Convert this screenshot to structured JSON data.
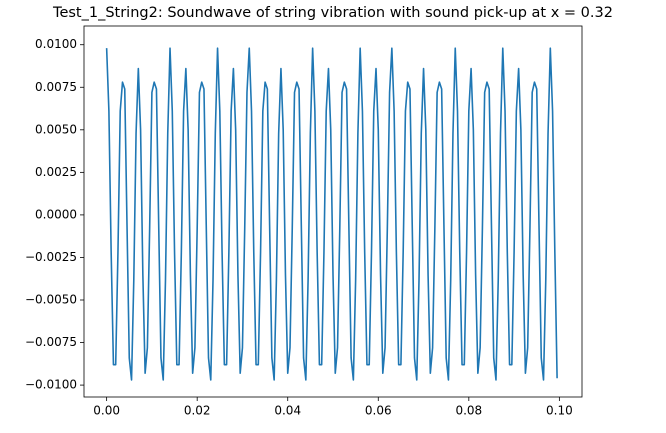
{
  "chart_data": {
    "type": "line",
    "title": "Test_1_String2: Soundwave of string vibration with sound pick-up at x = 0.32",
    "x": [
      0,
      0.0005,
      0.001,
      0.0015,
      0.002,
      0.0025,
      0.003,
      0.0035,
      0.004,
      0.0045,
      0.005,
      0.0055,
      0.006,
      0.0065,
      0.007,
      0.0075,
      0.008,
      0.0085,
      0.009,
      0.0095,
      0.01,
      0.0105,
      0.011,
      0.0115,
      0.012,
      0.0125,
      0.013,
      0.0135,
      0.014,
      0.0145,
      0.015,
      0.0155,
      0.016,
      0.0165,
      0.017,
      0.0175,
      0.018,
      0.0185,
      0.019,
      0.0195,
      0.02,
      0.0205,
      0.021,
      0.0215,
      0.022,
      0.0225,
      0.023,
      0.0235,
      0.024,
      0.0245,
      0.025,
      0.0255,
      0.026,
      0.0265,
      0.027,
      0.0275,
      0.028,
      0.0285,
      0.029,
      0.0295,
      0.03,
      0.0305,
      0.031,
      0.0315,
      0.032,
      0.0325,
      0.033,
      0.0335,
      0.034,
      0.0345,
      0.035,
      0.0355,
      0.036,
      0.0365,
      0.037,
      0.0375,
      0.038,
      0.0385,
      0.039,
      0.0395,
      0.04,
      0.0405,
      0.041,
      0.0415,
      0.042,
      0.0425,
      0.043,
      0.0435,
      0.044,
      0.0445,
      0.045,
      0.0455,
      0.046,
      0.0465,
      0.047,
      0.0475,
      0.048,
      0.0485,
      0.049,
      0.0495,
      0.05,
      0.0505,
      0.051,
      0.0515,
      0.052,
      0.0525,
      0.053,
      0.0535,
      0.054,
      0.0545,
      0.055,
      0.0555,
      0.056,
      0.0565,
      0.057,
      0.0575,
      0.058,
      0.0585,
      0.059,
      0.0595,
      0.06,
      0.0605,
      0.061,
      0.0615,
      0.062,
      0.0625,
      0.063,
      0.0635,
      0.064,
      0.0645,
      0.065,
      0.0655,
      0.066,
      0.0665,
      0.067,
      0.0675,
      0.068,
      0.0685,
      0.069,
      0.0695,
      0.07,
      0.0705,
      0.071,
      0.0715,
      0.072,
      0.0725,
      0.073,
      0.0735,
      0.074,
      0.0745,
      0.075,
      0.0755,
      0.076,
      0.0765,
      0.077,
      0.0775,
      0.078,
      0.0785,
      0.079,
      0.0795,
      0.08,
      0.0805,
      0.081,
      0.0815,
      0.082,
      0.0825,
      0.083,
      0.0835,
      0.084,
      0.0845,
      0.085,
      0.0855,
      0.086,
      0.0865,
      0.087,
      0.0875,
      0.088,
      0.0885,
      0.089,
      0.0895,
      0.09,
      0.0905,
      0.091,
      0.0915,
      0.092,
      0.0925,
      0.093,
      0.0935,
      0.094,
      0.0945,
      0.095,
      0.0955,
      0.096,
      0.0965,
      0.097,
      0.0975,
      0.098,
      0.0985,
      0.099,
      0.0995
    ],
    "series": [
      {
        "color": "#1f77b4",
        "values": [
          0.0098,
          0.0061,
          -0.0022,
          -0.0088,
          -0.0088,
          -0.0022,
          0.0061,
          0.0078,
          0.0074,
          -0.0006,
          -0.0084,
          -0.0097,
          -0.0038,
          0.0048,
          0.0086,
          0.005,
          -0.0035,
          -0.0093,
          -0.0078,
          -0.0008,
          0.0072,
          0.0078,
          0.0074,
          -0.0006,
          -0.0084,
          -0.0097,
          -0.0038,
          0.0048,
          0.0098,
          0.0061,
          -0.0022,
          -0.0088,
          -0.0088,
          -0.0022,
          0.0061,
          0.0086,
          0.005,
          -0.0035,
          -0.0093,
          -0.0078,
          -0.0008,
          0.0072,
          0.0078,
          0.0074,
          -0.0006,
          -0.0084,
          -0.0097,
          -0.0038,
          0.0048,
          0.0098,
          0.0061,
          -0.0022,
          -0.0088,
          -0.0088,
          -0.0022,
          0.0061,
          0.0086,
          0.005,
          -0.0035,
          -0.0093,
          -0.0078,
          -0.0008,
          0.0072,
          0.0098,
          0.0061,
          -0.0022,
          -0.0088,
          -0.0088,
          -0.0022,
          0.0061,
          0.0078,
          0.0074,
          -0.0006,
          -0.0084,
          -0.0097,
          -0.0038,
          0.0048,
          0.0086,
          0.005,
          -0.0035,
          -0.0093,
          -0.0078,
          -0.0008,
          0.0072,
          0.0078,
          0.0074,
          -0.0006,
          -0.0084,
          -0.0097,
          -0.0038,
          0.0048,
          0.0098,
          0.0061,
          -0.0022,
          -0.0088,
          -0.0088,
          -0.0022,
          0.0061,
          0.0086,
          0.005,
          -0.0035,
          -0.0093,
          -0.0078,
          -0.0008,
          0.0072,
          0.0078,
          0.0074,
          -0.0006,
          -0.0084,
          -0.0097,
          -0.0038,
          0.0048,
          0.0098,
          0.0061,
          -0.0022,
          -0.0088,
          -0.0088,
          -0.0022,
          0.0061,
          0.0086,
          0.005,
          -0.0035,
          -0.0093,
          -0.0078,
          -0.0008,
          0.0072,
          0.0098,
          0.0061,
          -0.0022,
          -0.0088,
          -0.0088,
          -0.0022,
          0.0061,
          0.0078,
          0.0074,
          -0.0006,
          -0.0084,
          -0.0097,
          -0.0038,
          0.0048,
          0.0086,
          0.005,
          -0.0035,
          -0.0093,
          -0.0078,
          -0.0008,
          0.0072,
          0.0078,
          0.0074,
          -0.0006,
          -0.0084,
          -0.0097,
          -0.0038,
          0.0048,
          0.0098,
          0.0061,
          -0.0022,
          -0.0088,
          -0.0088,
          -0.0022,
          0.0061,
          0.0086,
          0.005,
          -0.0035,
          -0.0093,
          -0.0078,
          -0.0008,
          0.0072,
          0.0078,
          0.0074,
          -0.0006,
          -0.0084,
          -0.0097,
          -0.0038,
          0.0048,
          0.0098,
          0.0061,
          -0.0022,
          -0.0088,
          -0.0088,
          -0.0022,
          0.0061,
          0.0086,
          0.005,
          -0.0035,
          -0.0093,
          -0.0078,
          -0.0008,
          0.0072,
          0.0078,
          0.0074,
          -0.0006,
          -0.0084,
          -0.0097,
          -0.0038,
          0.0048,
          0.0098,
          0.0061,
          -0.0022,
          -0.0096
        ]
      }
    ],
    "xlim": [
      -0.005,
      0.105
    ],
    "xticks": [
      {
        "value": 0,
        "label": "0.00"
      },
      {
        "value": 0.02,
        "label": "0.02"
      },
      {
        "value": 0.04,
        "label": "0.04"
      },
      {
        "value": 0.06,
        "label": "0.06"
      },
      {
        "value": 0.08,
        "label": "0.08"
      },
      {
        "value": 0.1,
        "label": "0.10"
      }
    ],
    "ylim": [
      -0.0107,
      0.0111
    ],
    "yticks": [
      {
        "value": -0.01,
        "label": "−0.0100"
      },
      {
        "value": -0.0075,
        "label": "−0.0075"
      },
      {
        "value": -0.005,
        "label": "−0.0050"
      },
      {
        "value": -0.0025,
        "label": "−0.0025"
      },
      {
        "value": 0,
        "label": "0.0000"
      },
      {
        "value": 0.0025,
        "label": "0.0025"
      },
      {
        "value": 0.005,
        "label": "0.0050"
      },
      {
        "value": 0.0075,
        "label": "0.0075"
      },
      {
        "value": 0.01,
        "label": "0.0100"
      }
    ],
    "grid": false
  }
}
